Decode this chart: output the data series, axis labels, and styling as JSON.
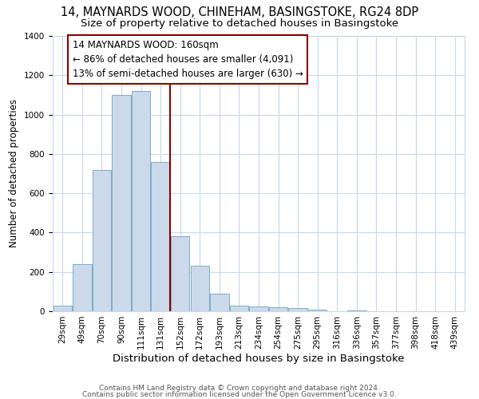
{
  "title1": "14, MAYNARDS WOOD, CHINEHAM, BASINGSTOKE, RG24 8DP",
  "title2": "Size of property relative to detached houses in Basingstoke",
  "xlabel": "Distribution of detached houses by size in Basingstoke",
  "ylabel": "Number of detached properties",
  "bar_values": [
    30,
    240,
    720,
    1100,
    1120,
    760,
    380,
    230,
    90,
    30,
    25,
    20,
    15,
    10,
    0,
    5,
    0,
    0,
    0,
    0,
    0
  ],
  "bar_labels": [
    "29sqm",
    "49sqm",
    "70sqm",
    "90sqm",
    "111sqm",
    "131sqm",
    "152sqm",
    "172sqm",
    "193sqm",
    "213sqm",
    "234sqm",
    "254sqm",
    "275sqm",
    "295sqm",
    "316sqm",
    "336sqm",
    "357sqm",
    "377sqm",
    "398sqm",
    "418sqm",
    "439sqm"
  ],
  "bar_color": "#ccd9ea",
  "bar_edge_color": "#7aadcc",
  "vline_x": 5.5,
  "vline_color": "#8b0000",
  "annotation_text": "14 MAYNARDS WOOD: 160sqm\n← 86% of detached houses are smaller (4,091)\n13% of semi-detached houses are larger (630) →",
  "annotation_box_color": "#ffffff",
  "annotation_box_edge": "#8b0000",
  "ylim": [
    0,
    1400
  ],
  "yticks": [
    0,
    200,
    400,
    600,
    800,
    1000,
    1200,
    1400
  ],
  "footer1": "Contains HM Land Registry data © Crown copyright and database right 2024.",
  "footer2": "Contains public sector information licensed under the Open Government Licence v3.0.",
  "bg_color": "#ffffff",
  "grid_color": "#c8d8e8",
  "title1_fontsize": 10.5,
  "title2_fontsize": 9.5,
  "xlabel_fontsize": 9.5,
  "ylabel_fontsize": 8.5,
  "tick_fontsize": 7.5,
  "footer_fontsize": 6.5,
  "annot_fontsize": 8.5,
  "n_bins": 21
}
